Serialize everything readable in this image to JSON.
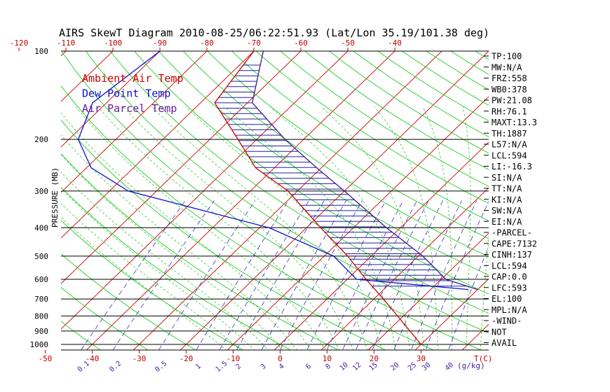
{
  "title": "AIRS SkewT Diagram 2010-08-25/06:22:51.93 (Lat/Lon 35.19/101.38 deg)",
  "legend": [
    {
      "label": "Ambient Air Temp",
      "color": "#cc0000"
    },
    {
      "label": "Dew Point Temp",
      "color": "#1010cc"
    },
    {
      "label": "Air Parcel Temp",
      "color": "#6a1a9a"
    }
  ],
  "colors": {
    "isotherm": "#cc0000",
    "adiabat": "#22cc22",
    "moist_adiabat": "#22cc22",
    "mixing_ratio": "#4030c0",
    "isobar": "#000000",
    "cape_hatch": "#2020a0"
  },
  "stats": [
    "TP:100",
    "MW:N/A",
    "FRZ:558",
    "WB0:378",
    "PW:21.08",
    "RH:76.1",
    "MAXT:13.3",
    "TH:1887",
    "L57:N/A",
    "LCL:594",
    "LI:-16.3",
    "SI:N/A",
    "TT:N/A",
    "KI:N/A",
    "SW:N/A",
    "EI:N/A",
    "-PARCEL-",
    "CAPE:7132",
    "CINH:137",
    "LCL:594",
    "CAP:0.0",
    "LFC:593",
    "EL:100",
    "MPL:N/A",
    "-WIND-",
    "NOT",
    "AVAIL"
  ],
  "chart_data": {
    "type": "line",
    "ylabel": "PRESSURE (MB)",
    "pressure_ticks": [
      "100",
      "200",
      "300",
      "400",
      "500",
      "600",
      "700",
      "800",
      "900",
      "1000"
    ],
    "top_temp_ticks": [
      "-120",
      "-110",
      "-100",
      "-90",
      "-80",
      "-70",
      "-60",
      "-50",
      "-40"
    ],
    "bottom_temp_ticks": [
      "-50",
      "-40",
      "-30",
      "-20",
      "-10",
      "0",
      "10",
      "20",
      "30"
    ],
    "bottom_unit": "T(C)",
    "mixing_ratio_labels": [
      "0.1",
      "0.2",
      "0.5",
      "1",
      "1.5",
      "2",
      "3",
      "4",
      "6",
      "8",
      "10",
      "12",
      "15",
      "20",
      "25",
      "30",
      "40"
    ],
    "mixing_ratio_unit": "(g/kg)",
    "ylim": [
      1000,
      100
    ],
    "series": [
      {
        "name": "Ambient Air Temp",
        "points": [
          {
            "p": 1000,
            "t": 30
          },
          {
            "p": 700,
            "t": 12
          },
          {
            "p": 600,
            "t": 4
          },
          {
            "p": 500,
            "t": -5
          },
          {
            "p": 400,
            "t": -17
          },
          {
            "p": 300,
            "t": -32
          },
          {
            "p": 250,
            "t": -44
          },
          {
            "p": 200,
            "t": -54
          },
          {
            "p": 150,
            "t": -67
          },
          {
            "p": 100,
            "t": -70
          }
        ]
      },
      {
        "name": "Dew Point Temp",
        "points": [
          {
            "p": 650,
            "t": 28
          },
          {
            "p": 600,
            "t": 2
          },
          {
            "p": 500,
            "t": -8
          },
          {
            "p": 400,
            "t": -28
          },
          {
            "p": 300,
            "t": -66
          },
          {
            "p": 250,
            "t": -79
          },
          {
            "p": 200,
            "t": -88
          },
          {
            "p": 150,
            "t": -93
          },
          {
            "p": 100,
            "t": -90
          }
        ]
      },
      {
        "name": "Air Parcel Temp",
        "points": [
          {
            "p": 650,
            "t": 30
          },
          {
            "p": 600,
            "t": 21
          },
          {
            "p": 500,
            "t": 11
          },
          {
            "p": 400,
            "t": -3
          },
          {
            "p": 300,
            "t": -20
          },
          {
            "p": 250,
            "t": -31
          },
          {
            "p": 200,
            "t": -44
          },
          {
            "p": 150,
            "t": -59
          },
          {
            "p": 100,
            "t": -68
          }
        ]
      }
    ]
  }
}
